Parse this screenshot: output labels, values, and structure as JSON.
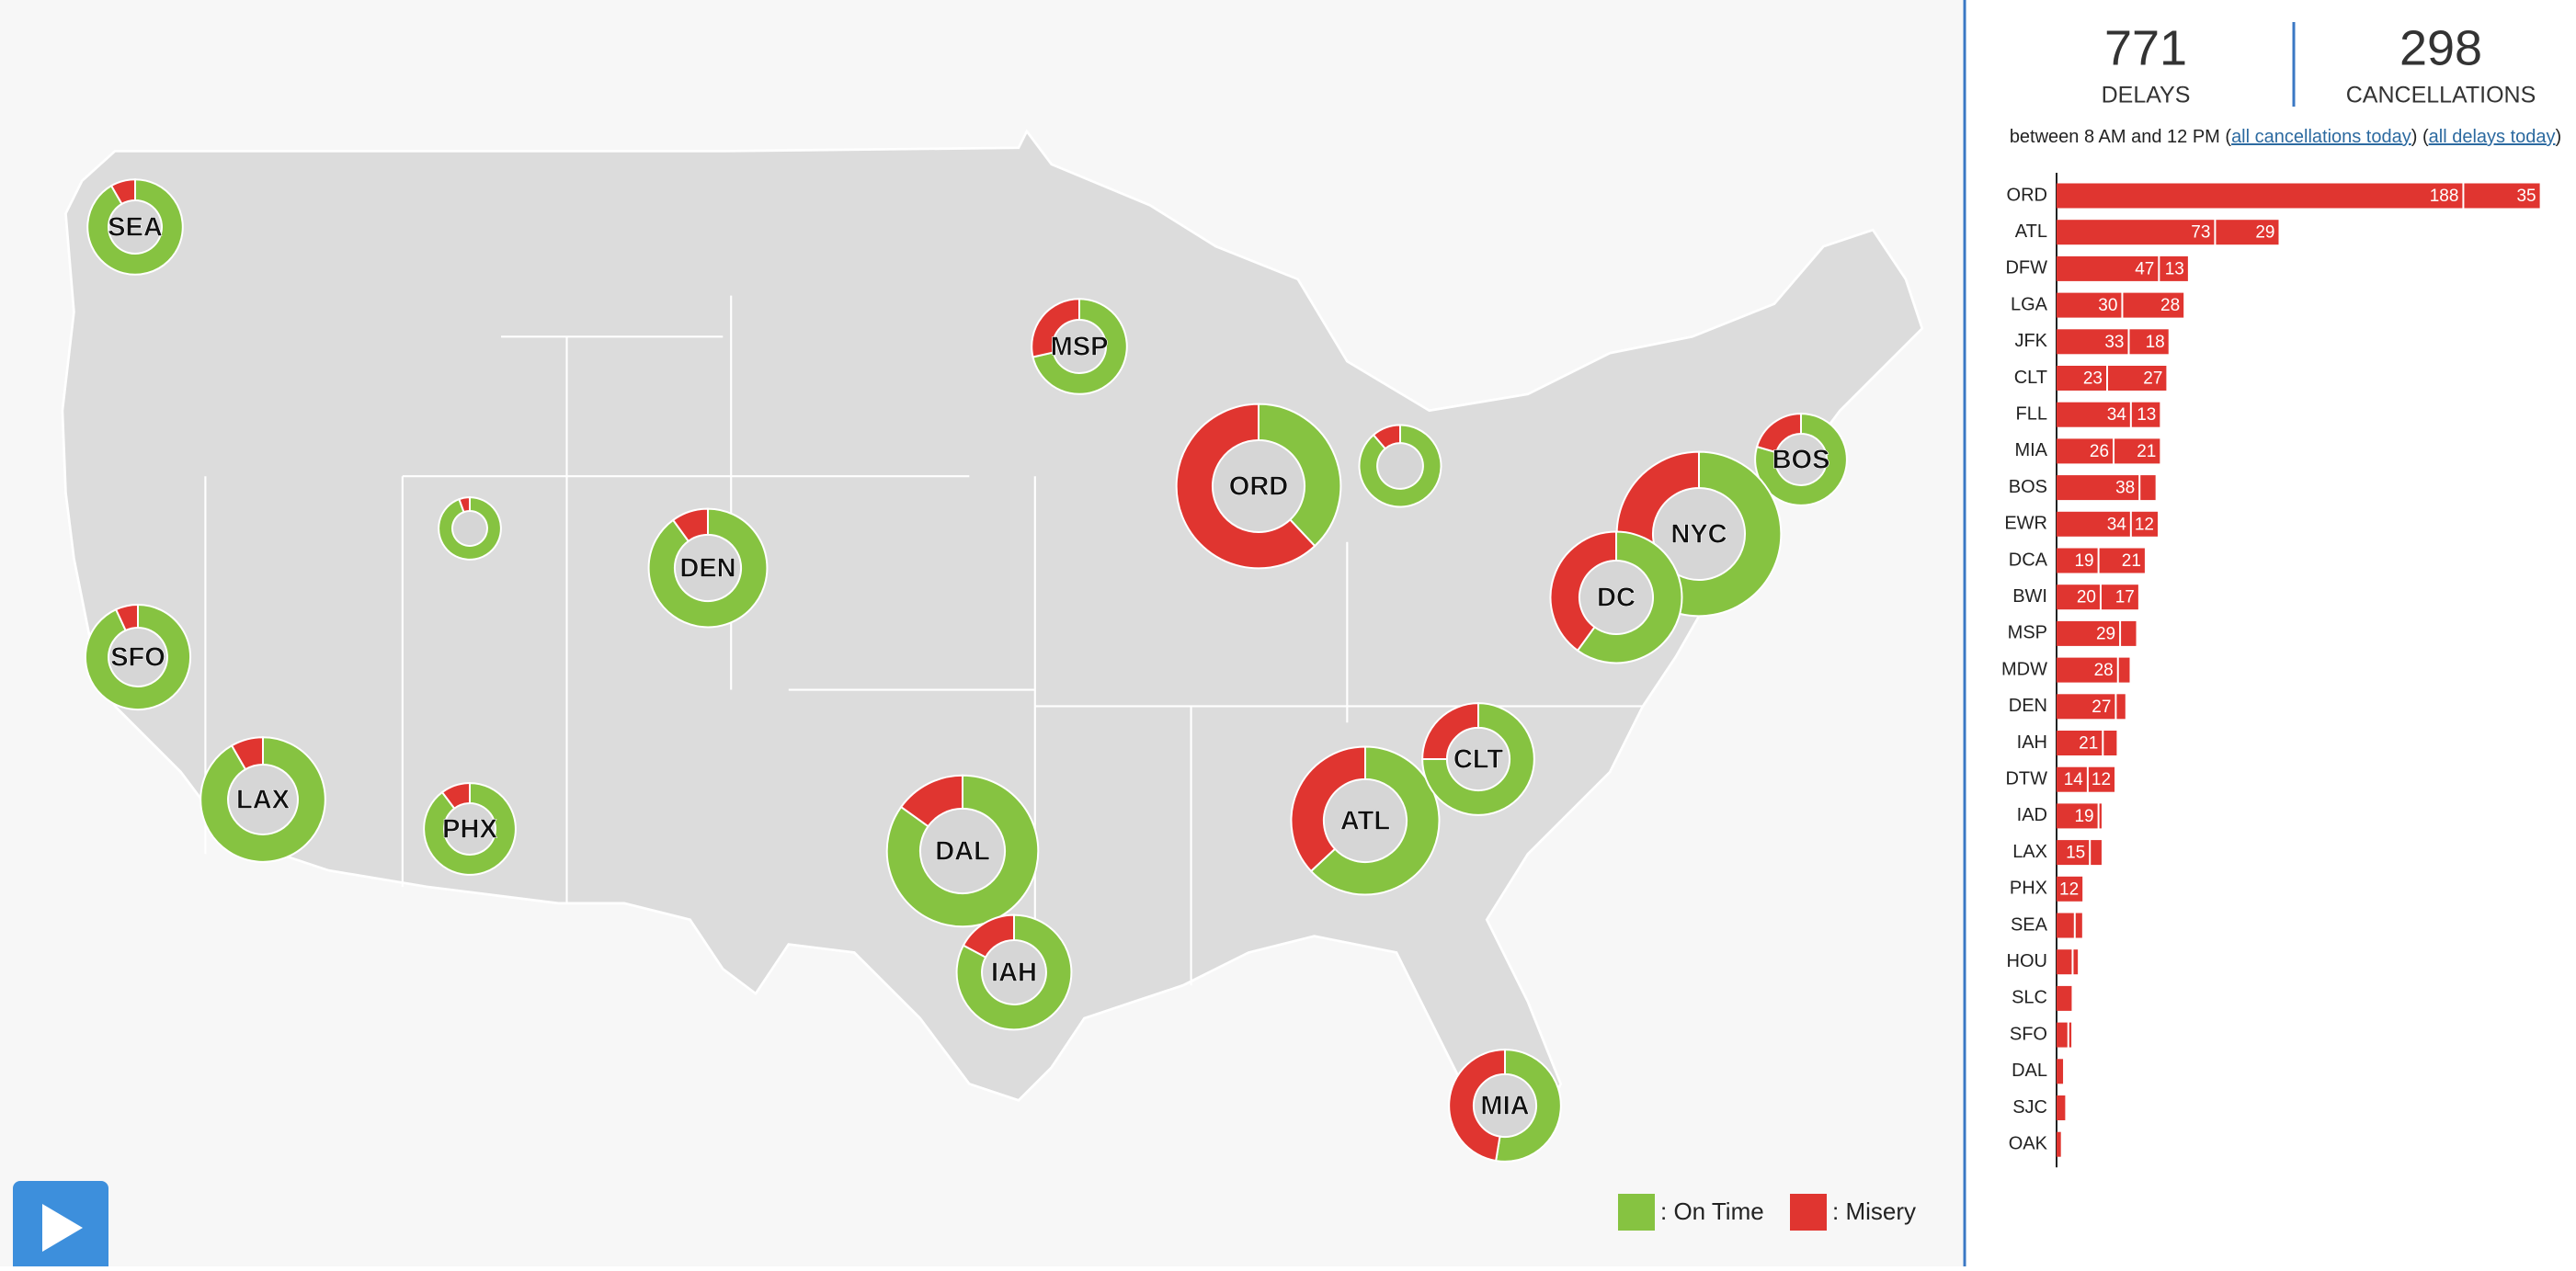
{
  "stats": {
    "delays": {
      "value": 771,
      "label": "DELAYS"
    },
    "cancellations": {
      "value": 298,
      "label": "CANCELLATIONS"
    }
  },
  "period": {
    "text": "between 8 AM and 12 PM (",
    "cancellations_link": "all cancellations today",
    "separator": ") (",
    "delays_link": "all delays today",
    "end": ")"
  },
  "bars": {
    "color": "#e03530",
    "rows": [
      {
        "airport": "ORD",
        "delays": 188,
        "cancellations": 35
      },
      {
        "airport": "ATL",
        "delays": 73,
        "cancellations": 29
      },
      {
        "airport": "DFW",
        "delays": 47,
        "cancellations": 13
      },
      {
        "airport": "LGA",
        "delays": 30,
        "cancellations": 28
      },
      {
        "airport": "JFK",
        "delays": 33,
        "cancellations": 18
      },
      {
        "airport": "CLT",
        "delays": 23,
        "cancellations": 27
      },
      {
        "airport": "FLL",
        "delays": 34,
        "cancellations": 13
      },
      {
        "airport": "MIA",
        "delays": 26,
        "cancellations": 21
      },
      {
        "airport": "BOS",
        "delays": 38,
        "cancellations": 7
      },
      {
        "airport": "EWR",
        "delays": 34,
        "cancellations": 12
      },
      {
        "airport": "DCA",
        "delays": 19,
        "cancellations": 21
      },
      {
        "airport": "BWI",
        "delays": 20,
        "cancellations": 17
      },
      {
        "airport": "MSP",
        "delays": 29,
        "cancellations": 7
      },
      {
        "airport": "MDW",
        "delays": 28,
        "cancellations": 5
      },
      {
        "airport": "DEN",
        "delays": 27,
        "cancellations": 4
      },
      {
        "airport": "IAH",
        "delays": 21,
        "cancellations": 6
      },
      {
        "airport": "DTW",
        "delays": 14,
        "cancellations": 12
      },
      {
        "airport": "IAD",
        "delays": 19,
        "cancellations": 1
      },
      {
        "airport": "LAX",
        "delays": 15,
        "cancellations": 5
      },
      {
        "airport": "PHX",
        "delays": 12,
        "cancellations": 0
      },
      {
        "airport": "SEA",
        "delays": 8,
        "cancellations": 3
      },
      {
        "airport": "HOU",
        "delays": 7,
        "cancellations": 2
      },
      {
        "airport": "SLC",
        "delays": 7,
        "cancellations": 0
      },
      {
        "airport": "SFO",
        "delays": 5,
        "cancellations": 1
      },
      {
        "airport": "DAL",
        "delays": 3,
        "cancellations": 0
      },
      {
        "airport": "SJC",
        "delays": 4,
        "cancellations": 0
      },
      {
        "airport": "OAK",
        "delays": 2,
        "cancellations": 0
      }
    ]
  },
  "map": {
    "colors": {
      "on_time": "#86c341",
      "misery": "#e03530"
    },
    "airports": [
      {
        "label": "SEA",
        "on_time": 77,
        "misery": 7
      },
      {
        "label": "MSP",
        "on_time": 60,
        "misery": 24
      },
      {
        "label": "ORD",
        "on_time": 95,
        "misery": 155
      },
      {
        "label": null,
        "on_time": 55,
        "misery": 7
      },
      {
        "label": "BOS",
        "on_time": 62,
        "misery": 16
      },
      {
        "label": "NYC",
        "on_time": 162,
        "misery": 88
      },
      {
        "label": "DC",
        "on_time": 96,
        "misery": 64
      },
      {
        "label": null,
        "on_time": 34,
        "misery": 2
      },
      {
        "label": "DEN",
        "on_time": 117,
        "misery": 13
      },
      {
        "label": "SFO",
        "on_time": 95,
        "misery": 7
      },
      {
        "label": "LAX",
        "on_time": 132,
        "misery": 12
      },
      {
        "label": "PHX",
        "on_time": 70,
        "misery": 8
      },
      {
        "label": "DAL",
        "on_time": 180,
        "misery": 32
      },
      {
        "label": "IAH",
        "on_time": 101,
        "misery": 21
      },
      {
        "label": "ATL",
        "on_time": 128,
        "misery": 75
      },
      {
        "label": "CLT",
        "on_time": 87,
        "misery": 29
      },
      {
        "label": "MIA",
        "on_time": 61,
        "misery": 55
      }
    ]
  },
  "legend": {
    "on_time": ": On Time",
    "misery": ": Misery"
  }
}
